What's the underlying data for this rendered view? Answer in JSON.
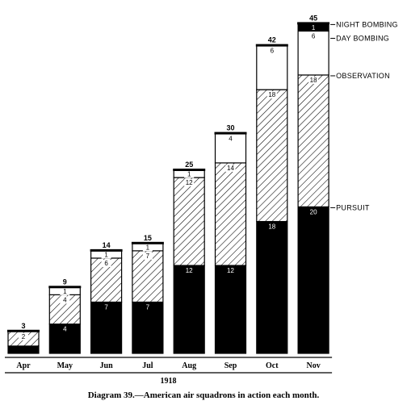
{
  "chart_data": {
    "type": "bar",
    "stacked": true,
    "categories": [
      "Apr",
      "May",
      "Jun",
      "Jul",
      "Aug",
      "Sep",
      "Oct",
      "Nov"
    ],
    "series": [
      {
        "name": "PURSUIT",
        "values": [
          1,
          4,
          7,
          7,
          12,
          12,
          18,
          20
        ],
        "pattern": "solid-black"
      },
      {
        "name": "OBSERVATION",
        "values": [
          2,
          4,
          6,
          7,
          12,
          14,
          18,
          18
        ],
        "pattern": "diagonal-hatch"
      },
      {
        "name": "DAY BOMBING",
        "values": [
          0,
          1,
          1,
          1,
          1,
          4,
          6,
          6
        ],
        "pattern": "white"
      },
      {
        "name": "NIGHT BOMBING",
        "values": [
          0,
          0,
          0,
          0,
          0,
          0,
          0,
          1
        ],
        "pattern": "black-small"
      }
    ],
    "segment_labels": [
      [
        null,
        "4",
        "7",
        "7",
        "12",
        "12",
        "18",
        "20"
      ],
      [
        "2",
        "4",
        "6",
        "7",
        "12",
        "14",
        "18",
        "18"
      ],
      [
        null,
        "1",
        "1",
        "1",
        "1",
        "4",
        "6",
        "6"
      ],
      [
        null,
        null,
        null,
        null,
        null,
        null,
        null,
        "1"
      ]
    ],
    "totals": [
      "3",
      "9",
      "14",
      "15",
      "25",
      "30",
      "42",
      "45"
    ],
    "xlabel": "1918",
    "legend_placement": "right of last bar",
    "legend": [
      "NIGHT BOMBING",
      "DAY BOMBING",
      "OBSERVATION",
      "PURSUIT"
    ]
  },
  "caption": "Diagram 39.—American air squadrons in action each month."
}
